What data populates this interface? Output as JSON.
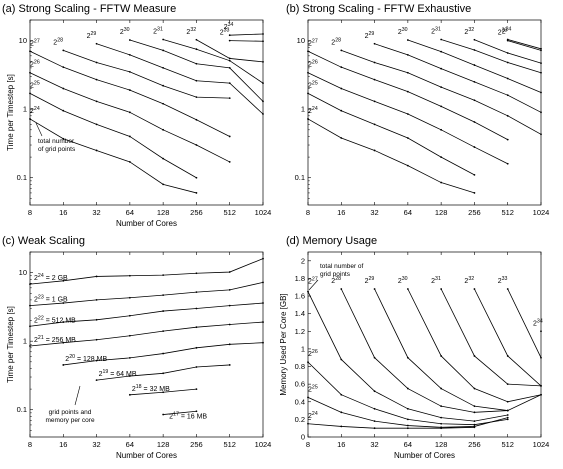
{
  "chart_data": [
    {
      "type": "line",
      "title": "(a) Strong Scaling - FFTW Measure",
      "xlabel": "Number of Cores",
      "ylabel": "Time per Timestep [s]",
      "xscale": "log2",
      "yscale": "log",
      "x_ticks": [
        "8",
        "16",
        "32",
        "64",
        "128",
        "256",
        "512",
        "1024"
      ],
      "y_ticks": [
        "0.1",
        "1",
        "10"
      ],
      "grid": false,
      "series": [
        {
          "label": "2^24",
          "x": [
            8,
            16,
            32,
            64,
            128,
            256
          ],
          "y": [
            0.72,
            0.37,
            0.25,
            0.17,
            0.08,
            0.06
          ]
        },
        {
          "label": "2^25",
          "x": [
            8,
            16,
            32,
            64,
            128,
            256
          ],
          "y": [
            1.7,
            0.95,
            0.6,
            0.4,
            0.19,
            0.1
          ]
        },
        {
          "label": "2^26",
          "x": [
            8,
            16,
            32,
            64,
            128,
            256,
            512
          ],
          "y": [
            3.4,
            2.0,
            1.3,
            0.9,
            0.5,
            0.3,
            0.17
          ]
        },
        {
          "label": "2^27",
          "x": [
            8,
            16,
            32,
            64,
            128,
            256,
            512
          ],
          "y": [
            7.0,
            4.1,
            2.7,
            1.9,
            1.2,
            0.7,
            0.4
          ]
        },
        {
          "label": "2^28",
          "x": [
            16,
            32,
            64,
            128,
            256,
            512
          ],
          "y": [
            7.2,
            4.8,
            3.5,
            2.2,
            1.5,
            1.45
          ]
        },
        {
          "label": "2^29",
          "x": [
            32,
            64,
            128,
            256,
            512,
            1024
          ],
          "y": [
            9.0,
            6.2,
            4.0,
            2.6,
            2.4,
            0.85
          ]
        },
        {
          "label": "2^30",
          "x": [
            64,
            128,
            256,
            512,
            1024
          ],
          "y": [
            10.2,
            7.2,
            4.6,
            4.0,
            1.3
          ]
        },
        {
          "label": "2^31",
          "x": [
            128,
            256,
            512,
            1024
          ],
          "y": [
            10.4,
            7.5,
            5.1,
            2.4
          ]
        },
        {
          "label": "2^32",
          "x": [
            256,
            512,
            1024
          ],
          "y": [
            10.3,
            5.5,
            4.9
          ]
        },
        {
          "label": "2^33",
          "x": [
            512,
            1024
          ],
          "y": [
            10.0,
            9.8
          ]
        },
        {
          "label": "2^34",
          "x": [
            512,
            1024
          ],
          "y": [
            12.0,
            12.5
          ]
        }
      ],
      "annotation": "total number of grid points"
    },
    {
      "type": "line",
      "title": "(b) Strong Scaling - FFTW Exhaustive",
      "xlabel": "",
      "ylabel": "",
      "xscale": "log2",
      "yscale": "log",
      "x_ticks": [
        "8",
        "16",
        "32",
        "64",
        "128",
        "256",
        "512",
        "1024"
      ],
      "y_ticks": [
        "0.1",
        "1",
        "10"
      ],
      "grid": false,
      "series": [
        {
          "label": "2^24",
          "x": [
            8,
            16,
            32,
            64,
            128,
            256
          ],
          "y": [
            0.72,
            0.38,
            0.25,
            0.15,
            0.085,
            0.06
          ]
        },
        {
          "label": "2^25",
          "x": [
            8,
            16,
            32,
            64,
            128,
            256
          ],
          "y": [
            1.7,
            0.95,
            0.6,
            0.38,
            0.2,
            0.11
          ]
        },
        {
          "label": "2^26",
          "x": [
            8,
            16,
            32,
            64,
            128,
            256,
            512
          ],
          "y": [
            3.4,
            2.0,
            1.3,
            0.85,
            0.5,
            0.28,
            0.16
          ]
        },
        {
          "label": "2^27",
          "x": [
            8,
            16,
            32,
            64,
            128,
            256,
            512
          ],
          "y": [
            7.0,
            4.1,
            2.7,
            1.8,
            1.1,
            0.65,
            0.36
          ]
        },
        {
          "label": "2^28",
          "x": [
            16,
            32,
            64,
            128,
            256,
            512,
            1024
          ],
          "y": [
            7.2,
            4.8,
            3.4,
            2.1,
            1.35,
            0.8,
            0.43
          ]
        },
        {
          "label": "2^29",
          "x": [
            32,
            64,
            128,
            256,
            512,
            1024
          ],
          "y": [
            9.0,
            6.2,
            3.9,
            2.5,
            1.6,
            0.9
          ]
        },
        {
          "label": "2^30",
          "x": [
            64,
            128,
            256,
            512,
            1024
          ],
          "y": [
            10.2,
            6.9,
            4.4,
            2.8,
            1.75
          ]
        },
        {
          "label": "2^31",
          "x": [
            128,
            256,
            512,
            1024
          ],
          "y": [
            10.4,
            7.3,
            4.8,
            3.4
          ]
        },
        {
          "label": "2^32",
          "x": [
            256,
            512,
            1024
          ],
          "y": [
            10.3,
            6.6,
            4.7
          ]
        },
        {
          "label": "2^33",
          "x": [
            512,
            1024
          ],
          "y": [
            10.0,
            7.2
          ]
        },
        {
          "label": "2^34",
          "x": [
            512,
            1024
          ],
          "y": [
            10.4,
            7.6
          ]
        }
      ]
    },
    {
      "type": "line",
      "title": "(c) Weak Scaling",
      "xlabel": "Number of Cores",
      "ylabel": "Time per Timestep [s]",
      "xscale": "log2",
      "yscale": "log",
      "x_ticks": [
        "8",
        "16",
        "32",
        "64",
        "128",
        "256",
        "512",
        "1024"
      ],
      "y_ticks": [
        "0.1",
        "1",
        "10"
      ],
      "grid": false,
      "series": [
        {
          "label": "2^24 = 2 GB",
          "x": [
            8,
            16,
            32,
            64,
            128,
            256,
            512,
            1024
          ],
          "y": [
            6.8,
            7.6,
            8.8,
            9.0,
            9.2,
            9.8,
            10.2,
            16.0
          ]
        },
        {
          "label": "2^23 = 1 GB",
          "x": [
            8,
            16,
            32,
            64,
            128,
            256,
            512,
            1024
          ],
          "y": [
            3.3,
            3.6,
            4.0,
            4.3,
            4.7,
            5.2,
            5.6,
            7.2
          ]
        },
        {
          "label": "2^22 = 512 MB",
          "x": [
            8,
            16,
            32,
            64,
            128,
            256,
            512,
            1024
          ],
          "y": [
            1.65,
            1.9,
            2.05,
            2.35,
            2.75,
            3.0,
            3.3,
            3.6
          ]
        },
        {
          "label": "2^21 = 256 MB",
          "x": [
            8,
            16,
            32,
            64,
            128,
            256,
            512,
            1024
          ],
          "y": [
            0.85,
            0.95,
            1.05,
            1.2,
            1.4,
            1.6,
            1.75,
            1.9
          ]
        },
        {
          "label": "2^20 = 128 MB",
          "x": [
            16,
            32,
            64,
            128,
            256,
            512,
            1024
          ],
          "y": [
            0.45,
            0.52,
            0.57,
            0.66,
            0.8,
            0.9,
            0.95
          ]
        },
        {
          "label": "2^19 = 64 MB",
          "x": [
            32,
            64,
            128,
            256,
            512
          ],
          "y": [
            0.27,
            0.31,
            0.34,
            0.42,
            0.45
          ]
        },
        {
          "label": "2^18 = 32 MB",
          "x": [
            64,
            128,
            256
          ],
          "y": [
            0.165,
            0.18,
            0.2
          ]
        },
        {
          "label": "2^17 = 16 MB",
          "x": [
            128,
            256
          ],
          "y": [
            0.085,
            0.095
          ]
        }
      ],
      "annotation": "grid points and memory per core"
    },
    {
      "type": "line",
      "title": "(d) Memory Usage",
      "xlabel": "Number of Cores",
      "ylabel": "Memory Used Per Core [GB]",
      "xscale": "log2",
      "yscale": "linear",
      "ylim": [
        0,
        2.1
      ],
      "x_ticks": [
        "8",
        "16",
        "32",
        "64",
        "128",
        "256",
        "512",
        "1024"
      ],
      "y_ticks": [
        "0",
        "0.2",
        "0.4",
        "0.6",
        "0.8",
        "1",
        "1.2",
        "1.4",
        "1.6",
        "1.8",
        "2"
      ],
      "grid": false,
      "series": [
        {
          "label": "2^24",
          "x": [
            8,
            16,
            32,
            64,
            128,
            256
          ],
          "y": [
            0.15,
            0.12,
            0.1,
            0.1,
            0.1,
            0.11
          ]
        },
        {
          "label": "2^25",
          "x": [
            8,
            16,
            32,
            64,
            128,
            256,
            512
          ],
          "y": [
            0.45,
            0.28,
            0.18,
            0.13,
            0.11,
            0.12,
            0.22
          ]
        },
        {
          "label": "2^26",
          "x": [
            8,
            16,
            32,
            64,
            128,
            256,
            512
          ],
          "y": [
            0.85,
            0.48,
            0.32,
            0.2,
            0.15,
            0.14,
            0.2
          ]
        },
        {
          "label": "2^27",
          "x": [
            8,
            16,
            32,
            64,
            128,
            256,
            512
          ],
          "y": [
            1.65,
            0.88,
            0.52,
            0.32,
            0.22,
            0.18,
            0.25
          ]
        },
        {
          "label": "2^28",
          "x": [
            16,
            32,
            64,
            128,
            256,
            512
          ],
          "y": [
            1.68,
            0.9,
            0.55,
            0.35,
            0.28,
            0.3
          ]
        },
        {
          "label": "2^29",
          "x": [
            32,
            64,
            128,
            256,
            512,
            1024
          ],
          "y": [
            1.68,
            0.9,
            0.55,
            0.35,
            0.3,
            0.48
          ]
        },
        {
          "label": "2^30",
          "x": [
            64,
            128,
            256,
            512,
            1024
          ],
          "y": [
            1.68,
            0.92,
            0.55,
            0.4,
            0.48
          ]
        },
        {
          "label": "2^31",
          "x": [
            128,
            256,
            512,
            1024
          ],
          "y": [
            1.68,
            0.92,
            0.6,
            0.58
          ]
        },
        {
          "label": "2^32",
          "x": [
            256,
            512,
            1024
          ],
          "y": [
            1.68,
            0.92,
            0.58
          ]
        },
        {
          "label": "2^33",
          "x": [
            512,
            1024
          ],
          "y": [
            1.68,
            0.9
          ]
        },
        {
          "label": "2^34",
          "x": [
            1024
          ],
          "y": [
            1.2
          ]
        }
      ],
      "annotation": "total number of grid points"
    }
  ]
}
